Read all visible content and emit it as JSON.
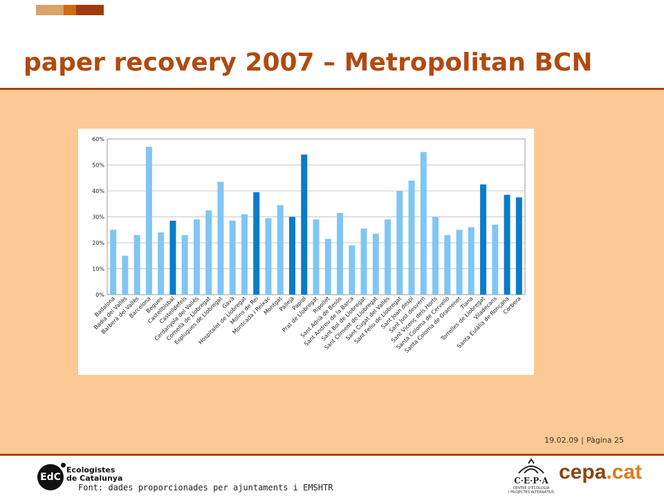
{
  "slide": {
    "title": "paper recovery 2007 – Metropolitan BCN",
    "date": "19.02.09",
    "separator": "|",
    "page_label": "Pàgina 25",
    "source": "Font: dades proporcionades per ajuntaments i EMSHTR"
  },
  "logos": {
    "edc_mark": "EdC",
    "edc_name_line1": "Ecologistes",
    "edc_name_line2": "de Catalunya",
    "cepa_letters": "C·E·P·A",
    "cepa_sub_line1": "CENTRE D'ECOLOGIA",
    "cepa_sub_line2": "I PROJECTES ALTERNATIUS",
    "cepa_domain_part1": "cepa",
    "cepa_domain_part2": ".cat"
  },
  "colors": {
    "title": "#b14a10",
    "rule": "#a64510",
    "panel": "#fcc995",
    "bar_light": "#7fc6f4",
    "bar_dark": "#0a7cc8",
    "grid": "#c8c8c8"
  },
  "chart_data": {
    "type": "bar",
    "title": "",
    "xlabel": "",
    "ylabel": "",
    "ylim": [
      0,
      0.6
    ],
    "y_ticks": [
      "0%",
      "10%",
      "20%",
      "30%",
      "40%",
      "50%",
      "60%"
    ],
    "grid": true,
    "categories": [
      "Badalona",
      "Badia del Vallès",
      "Barberà del Vallès",
      "Barcelona",
      "Begues",
      "Castellbisbal",
      "Castelldefels",
      "Cerdanyola del Vallès",
      "Cornellà de Llobregat",
      "Esplugues de Llobregat",
      "Gavà",
      "Hospitalet de Llobregat",
      "Molins de Rei",
      "Montcada i Reixac",
      "Montgat",
      "Pallejà",
      "Papiol",
      "Prat de Llobregat",
      "Ripollet",
      "Sant Adrià de Besòs",
      "Sant Andreu de la Barca",
      "Sant Boi de Llobregat",
      "Sant Climent de Llobregat",
      "Sant Cugat del Vallès",
      "Sant Feliu de Llobregat",
      "Sant Joan despí",
      "Sant Just desvern",
      "Sant Vicenç dels Horts",
      "Santa Coloma de Cervelló",
      "Santa Coloma de Gramenet",
      "Tiana",
      "Torrelles de Llobregat",
      "Viladecans",
      "Santa Eulàlia de Ronçana",
      "Corbera"
    ],
    "values": [
      0.25,
      0.15,
      0.23,
      0.57,
      0.24,
      0.285,
      0.23,
      0.29,
      0.325,
      0.435,
      0.285,
      0.31,
      0.395,
      0.295,
      0.345,
      0.3,
      0.54,
      0.29,
      0.215,
      0.315,
      0.19,
      0.255,
      0.235,
      0.29,
      0.4,
      0.44,
      0.55,
      0.3,
      0.23,
      0.25,
      0.26,
      0.425,
      0.27,
      0.385,
      0.375
    ],
    "highlight": [
      false,
      false,
      false,
      false,
      false,
      true,
      false,
      false,
      false,
      false,
      false,
      false,
      true,
      false,
      false,
      true,
      true,
      false,
      false,
      false,
      false,
      false,
      false,
      false,
      false,
      false,
      false,
      false,
      false,
      false,
      false,
      true,
      false,
      true,
      true
    ]
  }
}
